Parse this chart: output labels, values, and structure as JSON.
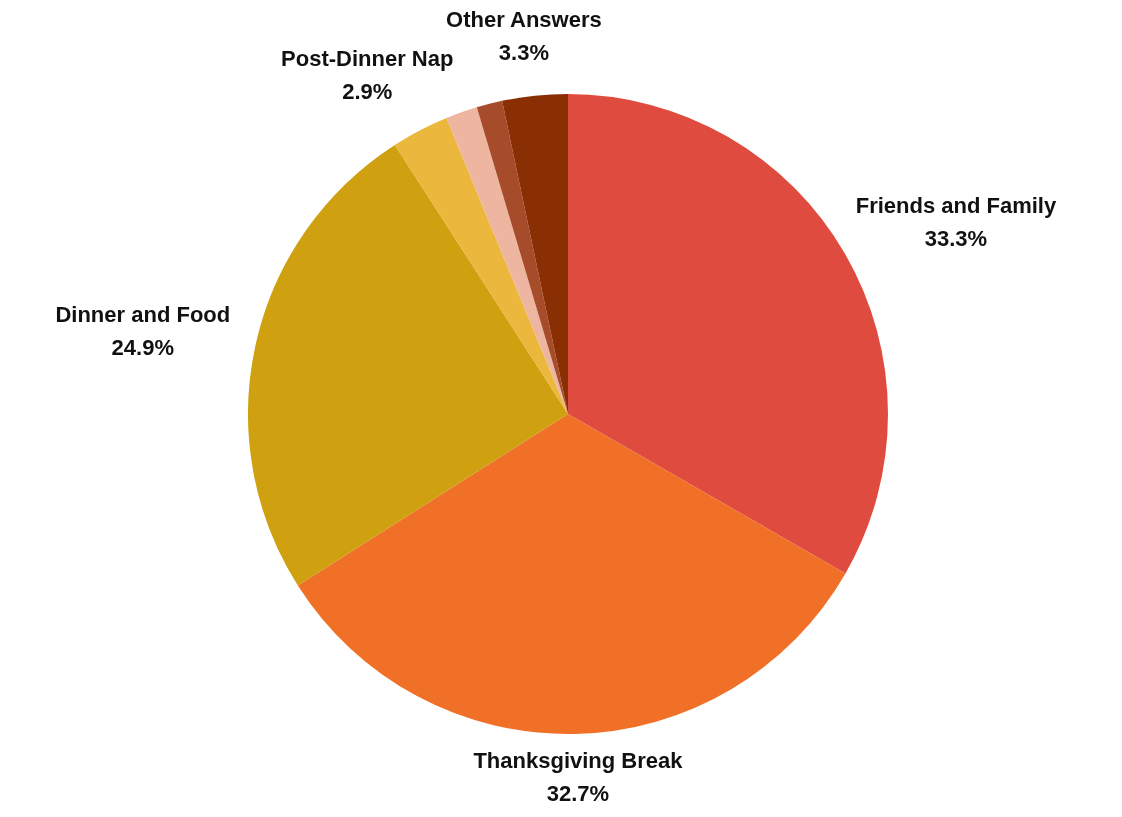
{
  "chart_data": {
    "type": "pie",
    "categories": [
      "Friends and Family",
      "Thanksgiving Break",
      "Dinner and Food",
      "Post-Dinner Nap",
      null,
      null,
      "Other Answers"
    ],
    "values": [
      33.3,
      32.7,
      24.9,
      2.9,
      1.6,
      1.3,
      3.3
    ],
    "colors": [
      "#e04b3f",
      "#f07027",
      "#cfa010",
      "#ebb73c",
      "#eeb5a0",
      "#a74c2a",
      "#8a2e04"
    ],
    "value_labels": [
      "33.3%",
      "32.7%",
      "24.9%",
      "2.9%",
      null,
      null,
      "3.3%"
    ],
    "legend": false
  }
}
